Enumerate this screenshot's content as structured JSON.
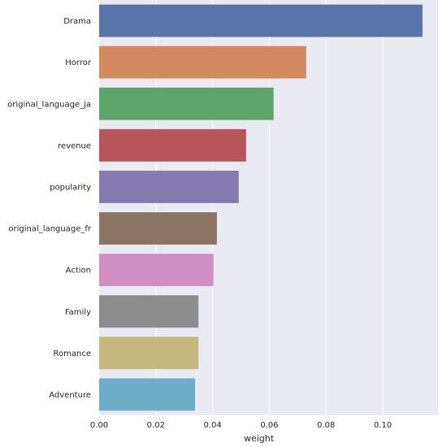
{
  "chart_data": {
    "type": "bar",
    "orientation": "horizontal",
    "categories": [
      "Drama",
      "Horror",
      "original_language_ja",
      "revenue",
      "popularity",
      "original_language_fr",
      "Action",
      "Family",
      "Romance",
      "Adventure"
    ],
    "values": [
      0.114,
      0.073,
      0.0615,
      0.0518,
      0.0492,
      0.0415,
      0.0403,
      0.035,
      0.035,
      0.0338
    ],
    "colors": [
      "#5874a8",
      "#d48a61",
      "#5ea56c",
      "#b8545a",
      "#857aae",
      "#8d7563",
      "#d28fc6",
      "#8d8d8d",
      "#c6b77f",
      "#6dadc7"
    ],
    "xlabel": "weight",
    "ylabel": "",
    "xlim": [
      0,
      0.1195
    ],
    "xticks": [
      0.0,
      0.02,
      0.04,
      0.06,
      0.08,
      0.1
    ],
    "xtick_labels": [
      "0.00",
      "0.02",
      "0.04",
      "0.06",
      "0.08",
      "0.10"
    ],
    "grid": true,
    "background": "#eaeaf2"
  }
}
